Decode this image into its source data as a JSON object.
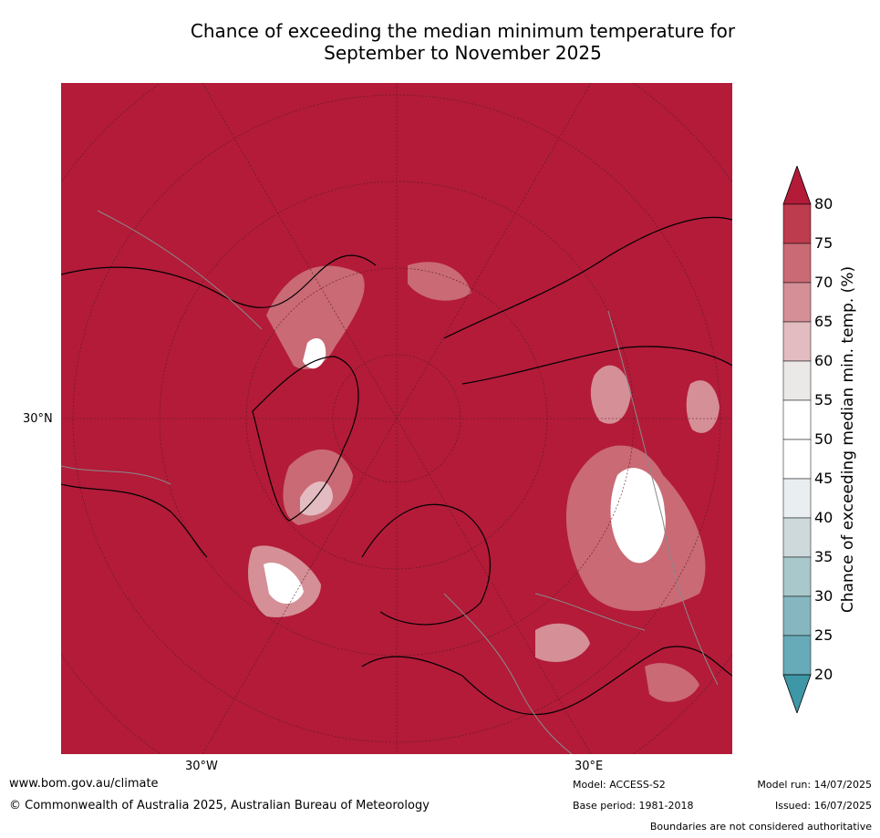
{
  "title_line1": "Chance of exceeding the median minimum temperature for",
  "title_line2": "September to November 2025",
  "lon_labels": {
    "w": "30°W",
    "e": "30°E"
  },
  "lat_label": "30°N",
  "colorbar": {
    "label": "Chance of exceeding median min. temp. (%)",
    "ticks": [
      "80",
      "75",
      "70",
      "65",
      "60",
      "55",
      "50",
      "45",
      "40",
      "35",
      "30",
      "25",
      "20"
    ],
    "colors": [
      "#b31b39",
      "#bd3c4d",
      "#c96a75",
      "#d48f97",
      "#e2bcc0",
      "#ebe8e8",
      "#ffffff",
      "#ffffff",
      "#e9eef0",
      "#cdd9db",
      "#a9c8cc",
      "#86b7c1",
      "#67aab8",
      "#3e97a6"
    ]
  },
  "footer": {
    "website": "www.bom.gov.au/climate",
    "copyright": "© Commonwealth of Australia 2025, Australian Bureau of Meteorology",
    "model": "Model: ACCESS-S2",
    "base_period": "Base period: 1981-2018",
    "model_run": "Model run: 14/07/2025",
    "issued": "Issued: 16/07/2025",
    "disclaimer": "Boundaries are not considered authoritative"
  }
}
